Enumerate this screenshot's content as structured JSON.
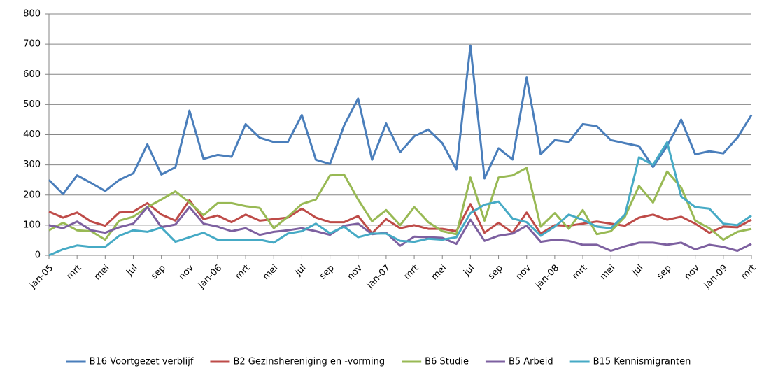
{
  "chart_data": {
    "type": "line",
    "categories": [
      "jan-05",
      null,
      "mrt",
      null,
      "mei",
      null,
      "jul",
      null,
      "sep",
      null,
      "nov",
      null,
      "jan-06",
      null,
      "mrt",
      null,
      "mei",
      null,
      "jul",
      null,
      "sep",
      null,
      "nov",
      null,
      "jan-07",
      null,
      "mrt",
      null,
      "mei",
      null,
      "jul",
      null,
      "sep",
      null,
      "nov",
      null,
      "jan-08",
      null,
      "mrt",
      null,
      "mei",
      null,
      "jul",
      null,
      "sep",
      null,
      "nov",
      null,
      "jan-09",
      null,
      "mrt"
    ],
    "series": [
      {
        "name": "B16 Voortgezet verblijf",
        "color": "#4a7ebb",
        "values": [
          250,
          203,
          265,
          240,
          213,
          250,
          272,
          368,
          268,
          292,
          480,
          320,
          333,
          327,
          435,
          390,
          376,
          376,
          465,
          317,
          303,
          430,
          520,
          317,
          437,
          342,
          395,
          417,
          372,
          285,
          695,
          255,
          355,
          318,
          590,
          335,
          382,
          376,
          435,
          428,
          382,
          372,
          362,
          293,
          363,
          450,
          335,
          345,
          338,
          390,
          465
        ]
      },
      {
        "name": "B2 Gezinshereniging en -vorming",
        "color": "#be4b48",
        "values": [
          145,
          125,
          142,
          112,
          98,
          142,
          145,
          173,
          135,
          115,
          183,
          120,
          132,
          110,
          135,
          115,
          120,
          125,
          155,
          125,
          110,
          110,
          130,
          73,
          120,
          90,
          100,
          88,
          88,
          80,
          170,
          75,
          108,
          75,
          142,
          72,
          100,
          98,
          105,
          112,
          105,
          98,
          125,
          135,
          118,
          128,
          105,
          75,
          95,
          93,
          118
        ]
      },
      {
        "name": "B6 Studie",
        "color": "#98b954",
        "values": [
          83,
          108,
          83,
          80,
          52,
          115,
          128,
          160,
          185,
          212,
          175,
          133,
          173,
          173,
          163,
          157,
          90,
          128,
          170,
          185,
          265,
          268,
          185,
          113,
          150,
          100,
          160,
          110,
          80,
          70,
          258,
          115,
          258,
          265,
          290,
          95,
          140,
          88,
          150,
          70,
          80,
          128,
          230,
          175,
          278,
          225,
          115,
          90,
          52,
          78,
          88
        ]
      },
      {
        "name": "B5 Arbeid",
        "color": "#7d60a0",
        "values": [
          100,
          90,
          112,
          83,
          75,
          93,
          105,
          160,
          93,
          102,
          160,
          105,
          95,
          80,
          90,
          68,
          78,
          83,
          90,
          80,
          68,
          98,
          105,
          70,
          75,
          32,
          62,
          60,
          58,
          38,
          118,
          48,
          65,
          72,
          98,
          45,
          52,
          48,
          35,
          35,
          15,
          30,
          42,
          42,
          35,
          42,
          20,
          35,
          28,
          15,
          38
        ]
      },
      {
        "name": "B15 Kennismigranten",
        "color": "#46aac5",
        "values": [
          0,
          20,
          33,
          28,
          28,
          65,
          83,
          78,
          92,
          45,
          60,
          75,
          52,
          52,
          52,
          52,
          42,
          72,
          80,
          105,
          73,
          95,
          60,
          72,
          72,
          48,
          45,
          55,
          52,
          60,
          140,
          168,
          178,
          122,
          110,
          65,
          95,
          135,
          118,
          95,
          90,
          135,
          325,
          300,
          375,
          195,
          160,
          155,
          105,
          100,
          132
        ]
      }
    ],
    "ylim": [
      0,
      800
    ],
    "yticks": [
      0,
      100,
      200,
      300,
      400,
      500,
      600,
      700,
      800
    ],
    "grid": true,
    "legend": "bottom"
  }
}
